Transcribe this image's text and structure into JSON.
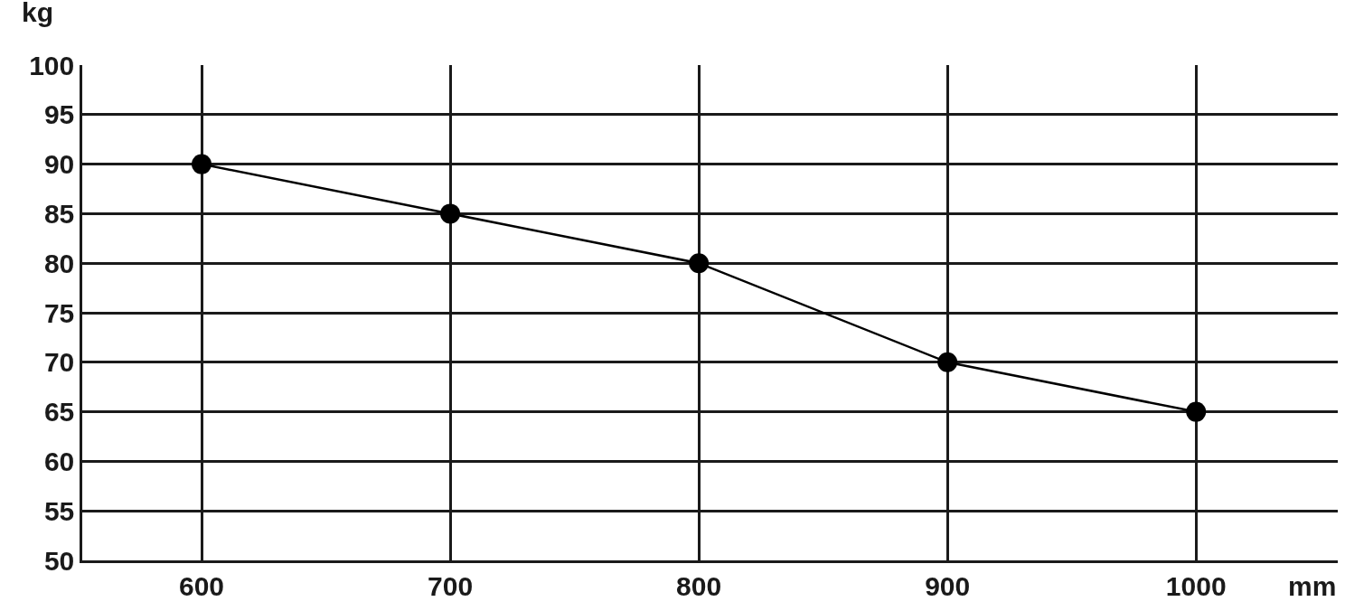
{
  "chart_data": {
    "type": "line",
    "xlabel": "mm",
    "ylabel": "kg",
    "x": [
      600,
      700,
      800,
      900,
      1000
    ],
    "series": [
      {
        "color": "#000000",
        "values": [
          90,
          85,
          80,
          70,
          65
        ]
      }
    ],
    "xlim": [
      552,
      1057
    ],
    "xticks": [
      600,
      700,
      800,
      900,
      1000
    ],
    "ylim": [
      50,
      100
    ],
    "yticks": [
      50,
      55,
      60,
      65,
      70,
      75,
      80,
      85,
      90,
      95,
      100
    ],
    "grid": true,
    "marker": "circle",
    "line_style": "solid"
  }
}
